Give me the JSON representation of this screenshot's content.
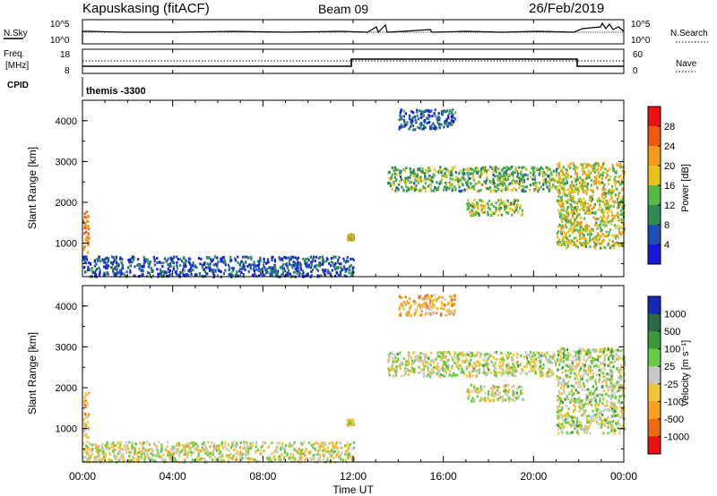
{
  "header": {
    "station": "Kapuskasing (fitACF)",
    "beam": "Beam 09",
    "date": "26/Feb/2019"
  },
  "strip_sky_search": {
    "left_label": "N.Sky",
    "right_label": "N.Search",
    "left_ticks": [
      "10^5",
      "10^0"
    ],
    "right_ticks": [
      "10^5",
      "10^0"
    ]
  },
  "strip_freq_nave": {
    "left_label_1": "Freq.",
    "left_label_2": "[MHz]",
    "right_label": "Nave",
    "left_ticks": [
      "18",
      "8"
    ],
    "right_ticks": [
      "60",
      "0"
    ]
  },
  "cpid": {
    "label": "CPID",
    "program": "themis -3300"
  },
  "axes": {
    "ylabel": "Slant Range [km]",
    "xlabel": "Time UT",
    "y_ticks": [
      "4000",
      "3000",
      "2000",
      "1000"
    ],
    "x_ticks": [
      "00:00",
      "04:00",
      "08:00",
      "12:00",
      "16:00",
      "20:00",
      "00:00"
    ]
  },
  "colorbars": {
    "power": {
      "label": "Power [dB]",
      "ticks": [
        "28",
        "24",
        "20",
        "16",
        "12",
        "8",
        "4"
      ],
      "colors": [
        "#ee1111",
        "#f05a10",
        "#f39a18",
        "#e8c21a",
        "#55b848",
        "#2f8a58",
        "#1e4fb4",
        "#1717dd"
      ]
    },
    "velocity": {
      "label": "Velocity [m s⁻¹]",
      "ticks": [
        "1000",
        "500",
        "100",
        "25",
        "-25",
        "-100",
        "-500",
        "-1000"
      ],
      "colors": [
        "#1727b8",
        "#2a6a48",
        "#3a9a3a",
        "#66cc44",
        "#c8c8c8",
        "#f2c632",
        "#f5a022",
        "#ee6a10",
        "#ee1111"
      ]
    }
  },
  "chart_data": [
    {
      "type": "heatmap",
      "title": "Power",
      "xlabel": "Time UT",
      "ylabel": "Slant Range [km]",
      "xlim": [
        0,
        24
      ],
      "ylim": [
        180,
        4500
      ],
      "z_label": "Power [dB]",
      "z_range": [
        0,
        30
      ],
      "regions": [
        {
          "t": [
            0.0,
            0.25
          ],
          "r": [
            800,
            1900
          ],
          "z": 22
        },
        {
          "t": [
            0.0,
            12.0
          ],
          "r": [
            200,
            700
          ],
          "z": 6
        },
        {
          "t": [
            11.7,
            12.0
          ],
          "r": [
            1100,
            1250
          ],
          "z": 18
        },
        {
          "t": [
            13.5,
            21.0
          ],
          "r": [
            2300,
            2900
          ],
          "z": 12
        },
        {
          "t": [
            14.0,
            16.5
          ],
          "r": [
            3800,
            4300
          ],
          "z": 6
        },
        {
          "t": [
            17.0,
            19.5
          ],
          "r": [
            1700,
            2100
          ],
          "z": 14
        },
        {
          "t": [
            21.0,
            24.0
          ],
          "r": [
            900,
            3000
          ],
          "z": 16
        }
      ]
    },
    {
      "type": "heatmap",
      "title": "Velocity",
      "xlabel": "Time UT",
      "ylabel": "Slant Range [km]",
      "xlim": [
        0,
        24
      ],
      "ylim": [
        180,
        4500
      ],
      "z_label": "Velocity [m s⁻¹]",
      "z_range": [
        -1000,
        1000
      ],
      "regions": [
        {
          "t": [
            0.0,
            0.25
          ],
          "r": [
            800,
            1900
          ],
          "z": -300
        },
        {
          "t": [
            0.0,
            12.0
          ],
          "r": [
            200,
            700
          ],
          "z": -50
        },
        {
          "t": [
            11.7,
            12.0
          ],
          "r": [
            1100,
            1250
          ],
          "z": -100
        },
        {
          "t": [
            13.5,
            21.0
          ],
          "r": [
            2300,
            2900
          ],
          "z": 0
        },
        {
          "t": [
            14.0,
            16.5
          ],
          "r": [
            3800,
            4300
          ],
          "z": -300
        },
        {
          "t": [
            17.0,
            19.5
          ],
          "r": [
            1700,
            2100
          ],
          "z": 0
        },
        {
          "t": [
            21.0,
            24.0
          ],
          "r": [
            900,
            3000
          ],
          "z": 50
        }
      ]
    }
  ]
}
